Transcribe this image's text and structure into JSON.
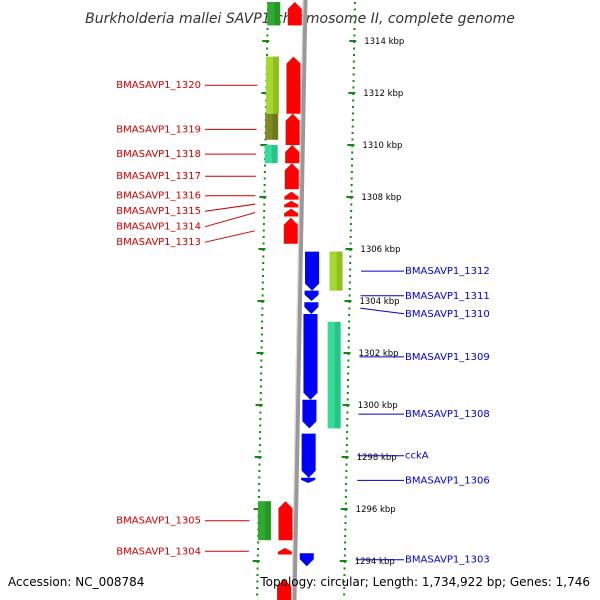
{
  "title": "Burkholderia mallei SAVP1 chromosome II, complete genome",
  "footer": {
    "accession": "Accession: NC_008784",
    "summary": "Topology: circular; Length: 1,734,922 bp; Genes: 1,746"
  },
  "ticks": [
    {
      "kb": 1314,
      "label": "1314 kbp"
    },
    {
      "kb": 1312,
      "label": "1312 kbp"
    },
    {
      "kb": 1310,
      "label": "1310 kbp"
    },
    {
      "kb": 1308,
      "label": "1308 kbp"
    },
    {
      "kb": 1306,
      "label": "1306 kbp"
    },
    {
      "kb": 1304,
      "label": "1304 kbp"
    },
    {
      "kb": 1302,
      "label": "1302 kbp"
    },
    {
      "kb": 1300,
      "label": "1300 kbp"
    },
    {
      "kb": 1298,
      "label": "1298 kbp"
    },
    {
      "kb": 1296,
      "label": "1296 kbp"
    },
    {
      "kb": 1294,
      "label": "1294 kbp"
    }
  ],
  "genes_forward": [
    {
      "label": "",
      "start": 1314.6,
      "end": 1315.5
    },
    {
      "label": "BMASAVP1_1320",
      "start": 1311.2,
      "end": 1313.4
    },
    {
      "label": "BMASAVP1_1319",
      "start": 1310.0,
      "end": 1311.2
    },
    {
      "label": "BMASAVP1_1318",
      "start": 1309.3,
      "end": 1310.0
    },
    {
      "label": "BMASAVP1_1317",
      "start": 1308.3,
      "end": 1309.3
    },
    {
      "label": "BMASAVP1_1316",
      "start": 1307.9,
      "end": 1308.2
    },
    {
      "label": "BMASAVP1_1315",
      "start": 1307.6,
      "end": 1307.85
    },
    {
      "label": "BMASAVP1_1314",
      "start": 1307.25,
      "end": 1307.55
    },
    {
      "label": "BMASAVP1_1313",
      "start": 1306.2,
      "end": 1307.2
    },
    {
      "label": "BMASAVP1_1305",
      "start": 1294.8,
      "end": 1296.3
    },
    {
      "label": "BMASAVP1_1304",
      "start": 1294.25,
      "end": 1294.5
    },
    {
      "label": "",
      "start": 1292.0,
      "end": 1293.3
    }
  ],
  "genes_reverse": [
    {
      "label": "BMASAVP1_1312",
      "start": 1304.4,
      "end": 1305.9
    },
    {
      "label": "BMASAVP1_1311",
      "start": 1304.0,
      "end": 1304.4
    },
    {
      "label": "BMASAVP1_1310",
      "start": 1303.5,
      "end": 1303.95
    },
    {
      "label": "BMASAVP1_1309",
      "start": 1300.2,
      "end": 1303.5
    },
    {
      "label": "BMASAVP1_1308",
      "start": 1299.1,
      "end": 1300.2
    },
    {
      "label": "cckA",
      "start": 1297.2,
      "end": 1298.9
    },
    {
      "label": "BMASAVP1_1306",
      "start": 1297.0,
      "end": 1297.2
    },
    {
      "label": "BMASAVP1_1303",
      "start": 1293.8,
      "end": 1294.3
    }
  ],
  "domains_forward": [
    {
      "start": 1314.6,
      "end": 1315.5,
      "color": "#2eaa2e"
    },
    {
      "start": 1311.2,
      "end": 1313.4,
      "color": "#a4d82a"
    },
    {
      "start": 1310.2,
      "end": 1311.2,
      "color": "#7e8a22"
    },
    {
      "start": 1309.3,
      "end": 1310.0,
      "color": "#33dd9a"
    },
    {
      "start": 1294.8,
      "end": 1296.3,
      "color": "#2eaa2e"
    }
  ],
  "domains_reverse": [
    {
      "start": 1304.4,
      "end": 1305.9,
      "color": "#a4d82a"
    },
    {
      "start": 1299.1,
      "end": 1303.2,
      "color": "#33dd9a"
    }
  ],
  "colors": {
    "forward": "#ff0000",
    "reverse": "#0000ff",
    "tick": "#118811",
    "backbone": "#999999",
    "left_label": "#cc0000",
    "right_label": "#0000cc"
  }
}
